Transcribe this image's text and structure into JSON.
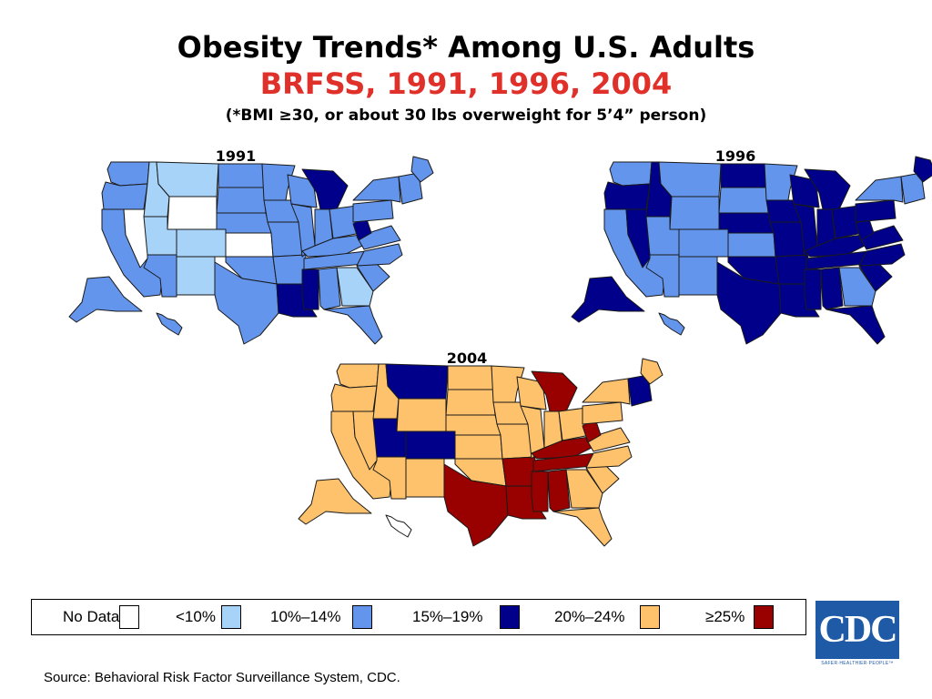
{
  "title": {
    "main": "Obesity Trends* Among U.S. Adults",
    "sub": "BRFSS, 1991, 1996, 2004",
    "note": "(*BMI ≥30, or about 30 lbs overweight for 5’4” person)"
  },
  "colors": {
    "title_main": "#000000",
    "title_sub": "#e0302a",
    "no_data": "#ffffff",
    "lt10": "#a6d3f7",
    "p10_14": "#6495ed",
    "p15_19": "#00008b",
    "p20_24": "#fdc26b",
    "ge25": "#990000",
    "outline": "#1a1a1a"
  },
  "maps": [
    {
      "year": "1991",
      "states": {
        "WA": "p10_14",
        "OR": "p10_14",
        "CA": "p10_14",
        "NV": "no_data",
        "ID": "lt10",
        "MT": "lt10",
        "WY": "no_data",
        "UT": "lt10",
        "CO": "lt10",
        "AZ": "p10_14",
        "NM": "lt10",
        "ND": "p10_14",
        "SD": "p10_14",
        "NE": "p10_14",
        "KS": "no_data",
        "OK": "p10_14",
        "TX": "p10_14",
        "MN": "p10_14",
        "IA": "p10_14",
        "MO": "p10_14",
        "AR": "p10_14",
        "LA": "p15_19",
        "WI": "p10_14",
        "IL": "p10_14",
        "MI": "p15_19",
        "IN": "p10_14",
        "OH": "p10_14",
        "KY": "p10_14",
        "TN": "p10_14",
        "MS": "p15_19",
        "AL": "p10_14",
        "GA": "lt10",
        "FL": "p10_14",
        "SC": "p10_14",
        "NC": "p10_14",
        "VA": "p10_14",
        "WV": "p15_19",
        "PA": "p10_14",
        "NY": "p10_14",
        "ME": "p10_14",
        "NE_US": "p10_14",
        "AK": "p10_14",
        "HI": "p10_14"
      }
    },
    {
      "year": "1996",
      "states": {
        "WA": "p10_14",
        "OR": "p15_19",
        "CA": "p10_14",
        "NV": "p15_19",
        "ID": "p15_19",
        "MT": "p10_14",
        "WY": "p10_14",
        "UT": "p10_14",
        "CO": "p10_14",
        "AZ": "p10_14",
        "NM": "p10_14",
        "ND": "p15_19",
        "SD": "p10_14",
        "NE": "p15_19",
        "KS": "p10_14",
        "OK": "p15_19",
        "TX": "p15_19",
        "MN": "p10_14",
        "IA": "p15_19",
        "MO": "p15_19",
        "AR": "p15_19",
        "LA": "p15_19",
        "WI": "p15_19",
        "IL": "p15_19",
        "MI": "p15_19",
        "IN": "p15_19",
        "OH": "p15_19",
        "KY": "p15_19",
        "TN": "p15_19",
        "MS": "p15_19",
        "AL": "p15_19",
        "GA": "p10_14",
        "FL": "p15_19",
        "SC": "p15_19",
        "NC": "p15_19",
        "VA": "p15_19",
        "WV": "p15_19",
        "PA": "p15_19",
        "NY": "p10_14",
        "ME": "p15_19",
        "NE_US": "p10_14",
        "AK": "p15_19",
        "HI": "p10_14"
      }
    },
    {
      "year": "2004",
      "states": {
        "WA": "p20_24",
        "OR": "p20_24",
        "CA": "p20_24",
        "NV": "p20_24",
        "ID": "p20_24",
        "MT": "p15_19",
        "WY": "p20_24",
        "UT": "p15_19",
        "CO": "p15_19",
        "AZ": "p20_24",
        "NM": "p20_24",
        "ND": "p20_24",
        "SD": "p20_24",
        "NE": "p20_24",
        "KS": "p20_24",
        "OK": "p20_24",
        "TX": "ge25",
        "MN": "p20_24",
        "IA": "p20_24",
        "MO": "p20_24",
        "AR": "ge25",
        "LA": "ge25",
        "WI": "p20_24",
        "IL": "p20_24",
        "MI": "ge25",
        "IN": "p20_24",
        "OH": "p20_24",
        "KY": "ge25",
        "TN": "ge25",
        "MS": "ge25",
        "AL": "ge25",
        "GA": "p20_24",
        "FL": "p20_24",
        "SC": "p20_24",
        "NC": "p20_24",
        "VA": "p20_24",
        "WV": "ge25",
        "PA": "p20_24",
        "NY": "p20_24",
        "ME": "p20_24",
        "NE_US": "p15_19",
        "AK": "p20_24",
        "HI": "no_data"
      }
    }
  ],
  "legend": [
    {
      "label": "No Data",
      "key": "no_data"
    },
    {
      "label": "<10%",
      "key": "lt10"
    },
    {
      "label": "10%–14%",
      "key": "p10_14"
    },
    {
      "label": "15%–19%",
      "key": "p15_19"
    },
    {
      "label": "20%–24%",
      "key": "p20_24"
    },
    {
      "label": "≥25%",
      "key": "ge25"
    }
  ],
  "source": "Source: Behavioral Risk Factor Surveillance System, CDC.",
  "logo": {
    "text": "CDC",
    "tagline": "SAFER·HEALTHIER·PEOPLE™"
  }
}
